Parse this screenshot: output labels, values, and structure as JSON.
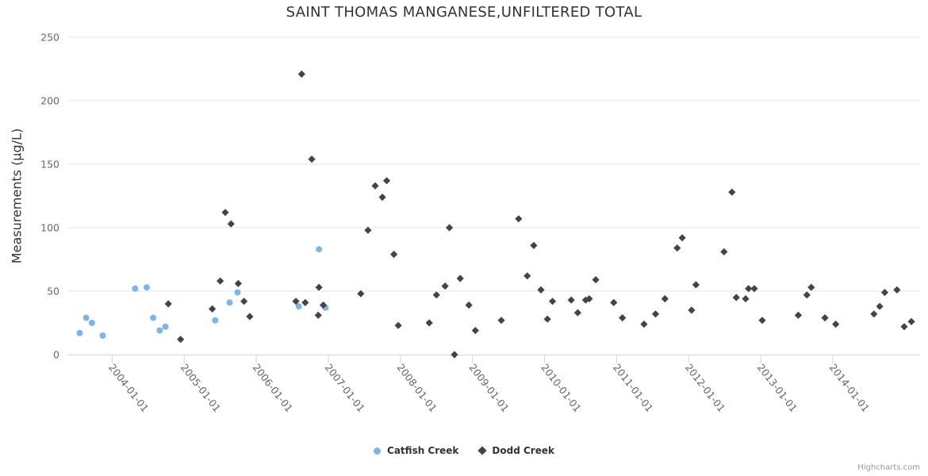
{
  "title": "SAINT THOMAS MANGANESE,UNFILTERED TOTAL",
  "credit": "Highcharts.com",
  "background": "#ffffff",
  "chart_data": {
    "type": "scatter",
    "title": "SAINT THOMAS MANGANESE,UNFILTERED TOTAL",
    "xlabel": "",
    "ylabel": "Measurements (µg/L)",
    "ylim": [
      0,
      250
    ],
    "yticks": [
      0,
      50,
      100,
      150,
      200,
      250
    ],
    "xlim": [
      2003.38,
      2015.21
    ],
    "x_unit": "decimal_year",
    "xticks": [
      2004,
      2005,
      2006,
      2007,
      2008,
      2009,
      2010,
      2011,
      2012,
      2013,
      2014
    ],
    "xtick_labels": [
      "2004-01-01",
      "2005-01-01",
      "2006-01-01",
      "2007-01-01",
      "2008-01-01",
      "2009-01-01",
      "2010-01-01",
      "2011-01-01",
      "2012-01-01",
      "2013-01-01",
      "2014-01-01"
    ],
    "xtick_label_rotation": 52,
    "grid": true,
    "gridline_color": "#e6e6e6",
    "axis_line_color": "#ccd6eb",
    "tick_label_color": "#666666",
    "legend_position": "bottom-center",
    "series": [
      {
        "name": "Catfish Creek",
        "color": "#7cb5ec",
        "marker": "circle",
        "data": [
          [
            2003.55,
            17
          ],
          [
            2003.64,
            29
          ],
          [
            2003.72,
            25
          ],
          [
            2003.87,
            15
          ],
          [
            2004.32,
            52
          ],
          [
            2004.48,
            53
          ],
          [
            2004.57,
            29
          ],
          [
            2004.66,
            19
          ],
          [
            2004.74,
            22
          ],
          [
            2005.43,
            27
          ],
          [
            2005.63,
            41
          ],
          [
            2005.74,
            49
          ],
          [
            2006.59,
            38
          ],
          [
            2006.87,
            83
          ],
          [
            2006.96,
            37
          ]
        ]
      },
      {
        "name": "Dodd Creek",
        "color": "#434348",
        "marker": "diamond",
        "data": [
          [
            2004.78,
            40
          ],
          [
            2004.95,
            12
          ],
          [
            2005.39,
            36
          ],
          [
            2005.5,
            58
          ],
          [
            2005.57,
            112
          ],
          [
            2005.65,
            103
          ],
          [
            2005.75,
            56
          ],
          [
            2005.83,
            42
          ],
          [
            2005.91,
            30
          ],
          [
            2006.55,
            42
          ],
          [
            2006.63,
            221
          ],
          [
            2006.68,
            41
          ],
          [
            2006.77,
            154
          ],
          [
            2006.86,
            31
          ],
          [
            2006.87,
            53
          ],
          [
            2006.93,
            39
          ],
          [
            2007.45,
            48
          ],
          [
            2007.55,
            98
          ],
          [
            2007.65,
            133
          ],
          [
            2007.75,
            124
          ],
          [
            2007.81,
            137
          ],
          [
            2007.91,
            79
          ],
          [
            2007.97,
            23
          ],
          [
            2008.4,
            25
          ],
          [
            2008.5,
            47
          ],
          [
            2008.62,
            54
          ],
          [
            2008.68,
            100
          ],
          [
            2008.75,
            0
          ],
          [
            2008.83,
            60
          ],
          [
            2008.95,
            39
          ],
          [
            2009.04,
            19
          ],
          [
            2009.4,
            27
          ],
          [
            2009.64,
            107
          ],
          [
            2009.76,
            62
          ],
          [
            2009.85,
            86
          ],
          [
            2009.95,
            51
          ],
          [
            2010.04,
            28
          ],
          [
            2010.11,
            42
          ],
          [
            2010.37,
            43
          ],
          [
            2010.46,
            33
          ],
          [
            2010.57,
            43
          ],
          [
            2010.62,
            44
          ],
          [
            2010.71,
            59
          ],
          [
            2010.96,
            41
          ],
          [
            2011.08,
            29
          ],
          [
            2011.38,
            24
          ],
          [
            2011.54,
            32
          ],
          [
            2011.67,
            44
          ],
          [
            2011.84,
            84
          ],
          [
            2011.91,
            92
          ],
          [
            2012.04,
            35
          ],
          [
            2012.1,
            55
          ],
          [
            2012.49,
            81
          ],
          [
            2012.6,
            128
          ],
          [
            2012.66,
            45
          ],
          [
            2012.79,
            44
          ],
          [
            2012.83,
            52
          ],
          [
            2012.91,
            52
          ],
          [
            2013.02,
            27
          ],
          [
            2013.52,
            31
          ],
          [
            2013.64,
            47
          ],
          [
            2013.7,
            53
          ],
          [
            2013.89,
            29
          ],
          [
            2014.04,
            24
          ],
          [
            2014.57,
            32
          ],
          [
            2014.65,
            38
          ],
          [
            2014.72,
            49
          ],
          [
            2014.89,
            51
          ],
          [
            2014.99,
            22
          ],
          [
            2015.09,
            26
          ]
        ]
      }
    ]
  }
}
